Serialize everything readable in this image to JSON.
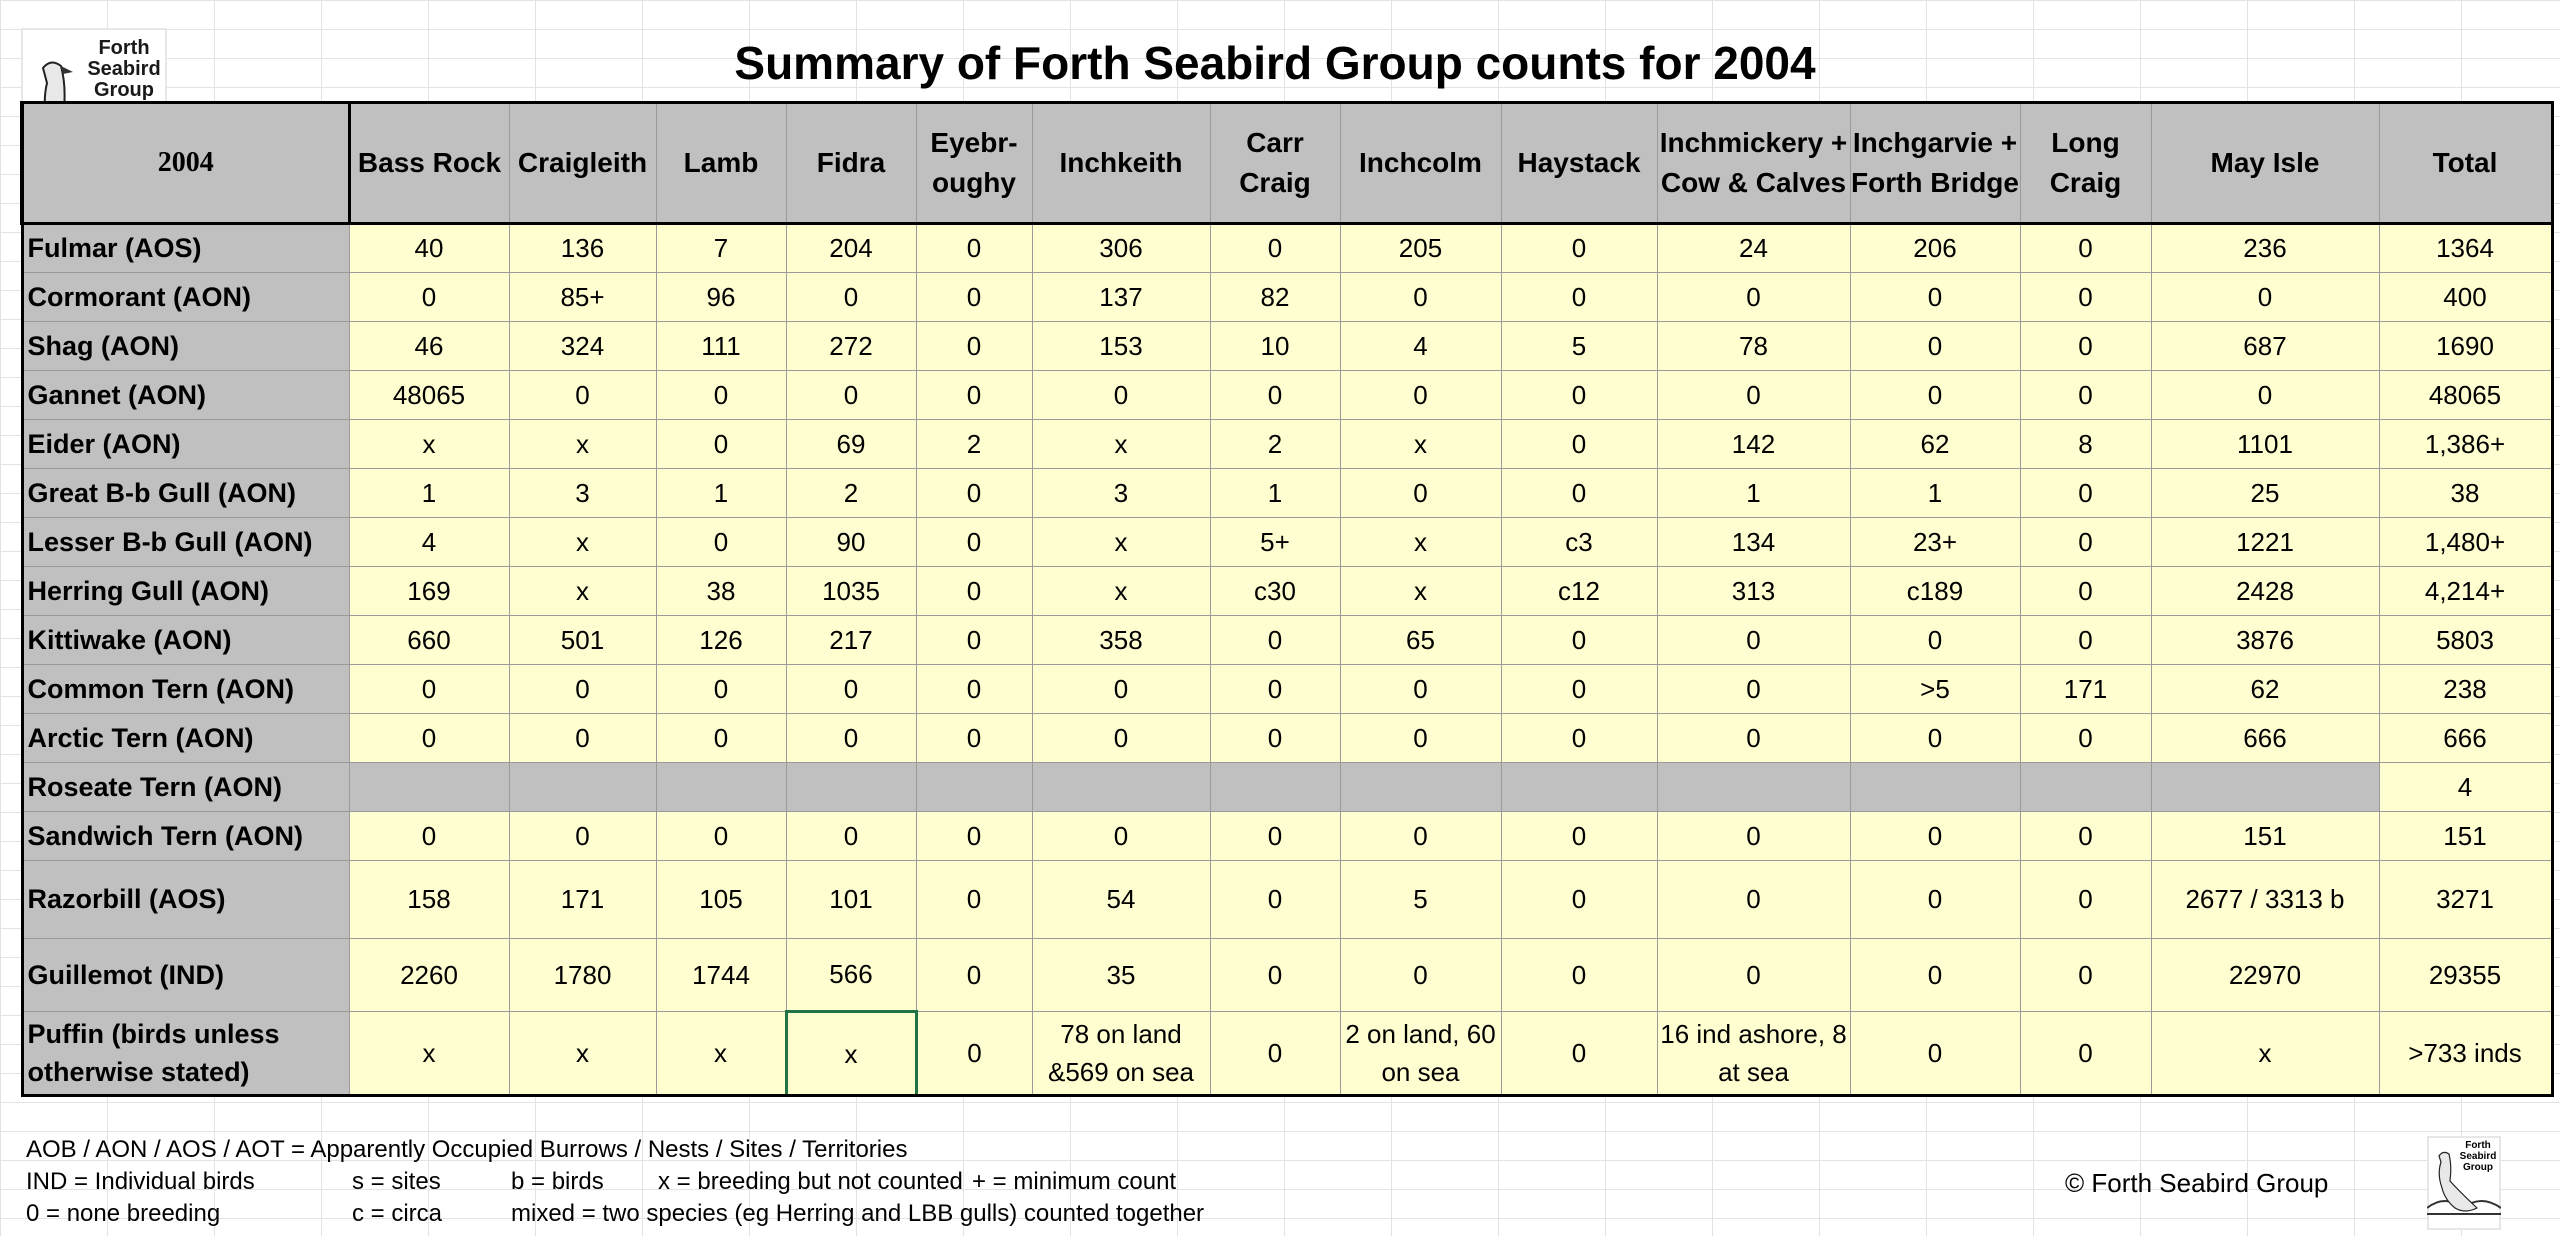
{
  "logo": {
    "line1": "Forth",
    "line2": "Seabird",
    "line3": "Group"
  },
  "title": "Summary of Forth Seabird Group counts for 2004",
  "year": "2004",
  "columns": [
    "Bass Rock",
    "Craigleith",
    "Lamb",
    "Fidra",
    "Eyebr-oughy",
    "Inchkeith",
    "Carr Craig",
    "Inchcolm",
    "Haystack",
    "Inchmickery + Cow & Calves",
    "Inchgarvie + Forth Bridge",
    "Long Craig",
    "May Isle",
    "Total"
  ],
  "rows": [
    {
      "label": "Fulmar (AOS)",
      "values": [
        "40",
        "136",
        "7",
        "204",
        "0",
        "306",
        "0",
        "205",
        "0",
        "24",
        "206",
        "0",
        "236",
        "1364"
      ]
    },
    {
      "label": "Cormorant (AON)",
      "values": [
        "0",
        "85+",
        "96",
        "0",
        "0",
        "137",
        "82",
        "0",
        "0",
        "0",
        "0",
        "0",
        "0",
        "400"
      ]
    },
    {
      "label": "Shag (AON)",
      "values": [
        "46",
        "324",
        "111",
        "272",
        "0",
        "153",
        "10",
        "4",
        "5",
        "78",
        "0",
        "0",
        "687",
        "1690"
      ]
    },
    {
      "label": "Gannet (AON)",
      "values": [
        "48065",
        "0",
        "0",
        "0",
        "0",
        "0",
        "0",
        "0",
        "0",
        "0",
        "0",
        "0",
        "0",
        "48065"
      ]
    },
    {
      "label": "Eider (AON)",
      "values": [
        "x",
        "x",
        "0",
        "69",
        "2",
        "x",
        "2",
        "x",
        "0",
        "142",
        "62",
        "8",
        "1101",
        "1,386+"
      ]
    },
    {
      "label": "Great B-b Gull (AON)",
      "values": [
        "1",
        "3",
        "1",
        "2",
        "0",
        "3",
        "1",
        "0",
        "0",
        "1",
        "1",
        "0",
        "25",
        "38"
      ]
    },
    {
      "label": "Lesser B-b Gull (AON)",
      "values": [
        "4",
        "x",
        "0",
        "90",
        "0",
        "x",
        "5+",
        "x",
        "c3",
        "134",
        "23+",
        "0",
        "1221",
        "1,480+"
      ]
    },
    {
      "label": "Herring Gull (AON)",
      "values": [
        "169",
        "x",
        "38",
        "1035",
        "0",
        "x",
        "c30",
        "x",
        "c12",
        "313",
        "c189",
        "0",
        "2428",
        "4,214+"
      ]
    },
    {
      "label": "Kittiwake (AON)",
      "values": [
        "660",
        "501",
        "126",
        "217",
        "0",
        "358",
        "0",
        "65",
        "0",
        "0",
        "0",
        "0",
        "3876",
        "5803"
      ]
    },
    {
      "label": "Common Tern (AON)",
      "values": [
        "0",
        "0",
        "0",
        "0",
        "0",
        "0",
        "0",
        "0",
        "0",
        "0",
        ">5",
        "171",
        "62",
        "238"
      ]
    },
    {
      "label": "Arctic Tern (AON)",
      "values": [
        "0",
        "0",
        "0",
        "0",
        "0",
        "0",
        "0",
        "0",
        "0",
        "0",
        "0",
        "0",
        "666",
        "666"
      ]
    },
    {
      "label": "Roseate Tern (AON)",
      "values": [
        "",
        "",
        "",
        "",
        "",
        "",
        "",
        "",
        "",
        "",
        "",
        "",
        "",
        "4"
      ]
    },
    {
      "label": "Sandwich Tern (AON)",
      "values": [
        "0",
        "0",
        "0",
        "0",
        "0",
        "0",
        "0",
        "0",
        "0",
        "0",
        "0",
        "0",
        "151",
        "151"
      ]
    },
    {
      "label": "Razorbill (AOS)",
      "values": [
        "158",
        "171",
        "105",
        "101",
        "0",
        "54",
        "0",
        "5",
        "0",
        "0",
        "0",
        "0",
        "2677 / 3313 b",
        "3271"
      ]
    },
    {
      "label": "Guillemot (IND)",
      "values": [
        "2260",
        "1780",
        "1744",
        "566",
        "0",
        "35",
        "0",
        "0",
        "0",
        "0",
        "0",
        "0",
        "22970",
        "29355"
      ]
    },
    {
      "label": "Puffin (birds unless otherwise stated)",
      "values": [
        "x",
        "x",
        "x",
        "x",
        "0",
        "78 on land &569 on sea",
        "0",
        "2 on land, 60 on sea",
        "0",
        "16 ind ashore, 8 at sea",
        "0",
        "0",
        "x",
        ">733 inds"
      ]
    }
  ],
  "legend": {
    "line1": "AOB / AON / AOS / AOT = Apparently Occupied Burrows / Nests / Sites / Territories",
    "line2": [
      "IND = Individual birds",
      "s = sites",
      "b = birds",
      "x  = breeding but not counted",
      "+ = minimum count"
    ],
    "line3": [
      "0 = none breeding",
      "c = circa",
      "mixed = two species (eg Herring and LBB gulls) counted together"
    ]
  },
  "copyright": "© Forth Seabird Group",
  "small_logo": {
    "line1": "Forth",
    "line2": "Seabird",
    "line3": "Group"
  }
}
